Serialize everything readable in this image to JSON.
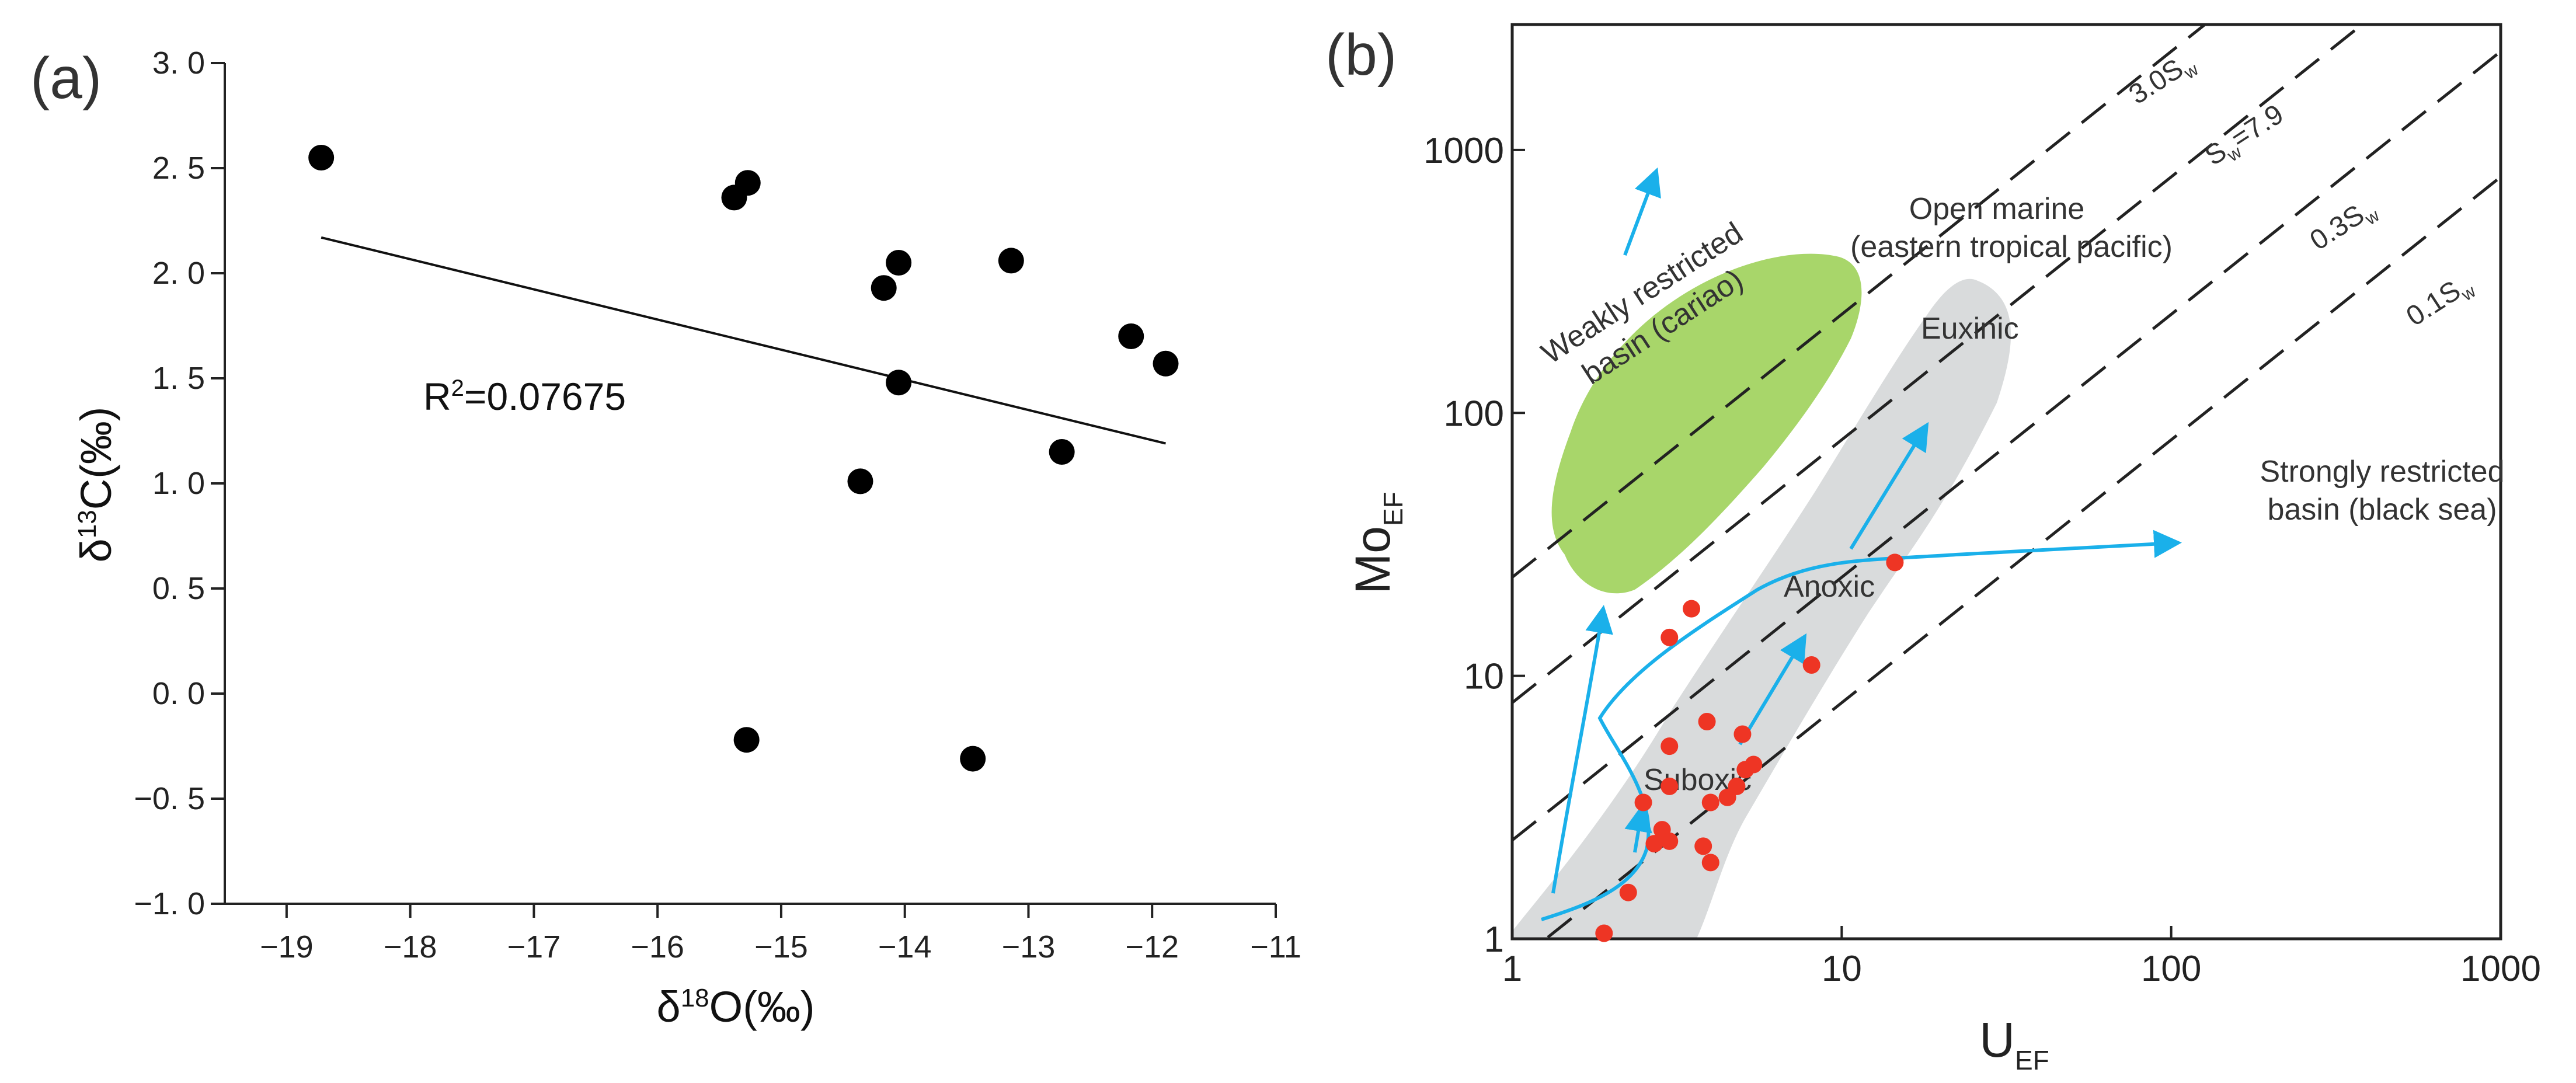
{
  "chart_data": [
    {
      "type": "scatter",
      "panel_label": "(a)",
      "xlabel": "δ18O(‰)",
      "ylabel": "δ13C(‰)",
      "xlim": [
        -19.5,
        -11
      ],
      "ylim": [
        -1.0,
        3.0
      ],
      "x_ticks": [
        "−19",
        "−18",
        "−17",
        "−16",
        "−15",
        "−14",
        "−13",
        "−12",
        "−11"
      ],
      "y_ticks": [
        "−1. 0",
        "−0. 5",
        "0. 0",
        "0. 5",
        "1. 0",
        "1. 5",
        "2. 0",
        "2. 5",
        "3. 0"
      ],
      "points": [
        {
          "x": -18.72,
          "y": 2.55
        },
        {
          "x": -15.38,
          "y": 2.36
        },
        {
          "x": -15.27,
          "y": 2.43
        },
        {
          "x": -15.28,
          "y": -0.22
        },
        {
          "x": -14.36,
          "y": 1.01
        },
        {
          "x": -14.17,
          "y": 1.93
        },
        {
          "x": -14.05,
          "y": 2.05
        },
        {
          "x": -14.05,
          "y": 1.48
        },
        {
          "x": -13.45,
          "y": -0.31
        },
        {
          "x": -13.14,
          "y": 2.06
        },
        {
          "x": -12.73,
          "y": 1.15
        },
        {
          "x": -12.17,
          "y": 1.7
        },
        {
          "x": -11.89,
          "y": 1.57
        }
      ],
      "trendline": {
        "x": [
          -18.72,
          -11.89
        ],
        "y": [
          2.17,
          1.19
        ]
      },
      "annotation": "R²=0.07675",
      "grid": false
    },
    {
      "type": "scatter",
      "panel_label": "(b)",
      "xlabel": "UEF",
      "ylabel": "MoEF",
      "x_scale": "log",
      "y_scale": "log",
      "xlim": [
        1,
        1000
      ],
      "ylim": [
        1,
        3000
      ],
      "x_ticks": [
        "1",
        "10",
        "100",
        "1000"
      ],
      "y_ticks": [
        "1",
        "10",
        "100",
        "1000"
      ],
      "reference_lines": [
        {
          "label": "3.0Sw",
          "ratio": 23.7
        },
        {
          "label": "Sw=7.9",
          "ratio": 7.9
        },
        {
          "label": "0.3Sw",
          "ratio": 2.37
        },
        {
          "label": "0.1Sw",
          "ratio": 0.79
        }
      ],
      "regions": [
        {
          "label": "Weakly restricted basin (cariao)",
          "color": "#a8d66a"
        },
        {
          "label": "Euxinic",
          "color": "#d9dbdc"
        }
      ],
      "region_labels": [
        "Open marine (eastern tropical pacific)",
        "Strongly restricted basin (black sea)",
        "Anoxic",
        "Suboxic"
      ],
      "arrow_color": "#1ab0ea",
      "point_color": "#ee3524",
      "points": [
        {
          "x": 1.9,
          "y": 1.05
        },
        {
          "x": 2.25,
          "y": 1.5
        },
        {
          "x": 2.5,
          "y": 3.3
        },
        {
          "x": 2.7,
          "y": 2.3
        },
        {
          "x": 2.85,
          "y": 2.6
        },
        {
          "x": 3.0,
          "y": 2.35
        },
        {
          "x": 3.0,
          "y": 3.8
        },
        {
          "x": 3.0,
          "y": 5.4
        },
        {
          "x": 3.0,
          "y": 14.0
        },
        {
          "x": 3.5,
          "y": 18.0
        },
        {
          "x": 3.8,
          "y": 2.25
        },
        {
          "x": 3.9,
          "y": 6.7
        },
        {
          "x": 4.0,
          "y": 3.3
        },
        {
          "x": 4.0,
          "y": 1.95
        },
        {
          "x": 4.5,
          "y": 3.45
        },
        {
          "x": 4.8,
          "y": 3.8
        },
        {
          "x": 5.0,
          "y": 6.0
        },
        {
          "x": 5.1,
          "y": 4.4
        },
        {
          "x": 5.4,
          "y": 4.6
        },
        {
          "x": 8.1,
          "y": 11.0
        },
        {
          "x": 14.5,
          "y": 27.0
        }
      ]
    }
  ]
}
